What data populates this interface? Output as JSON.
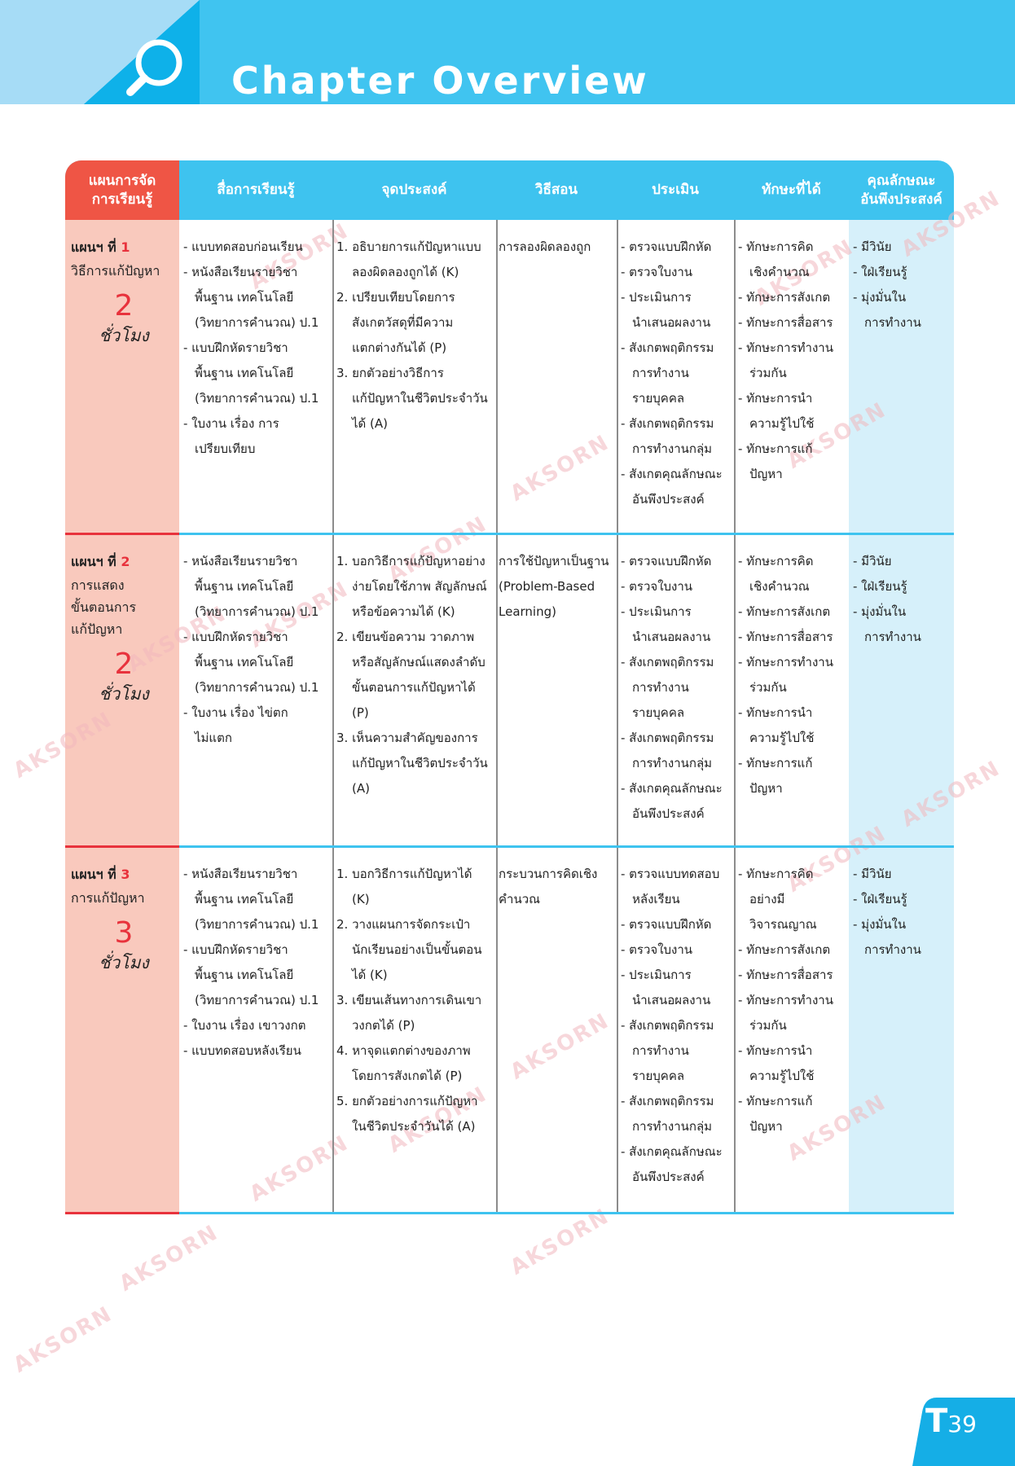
{
  "header": {
    "title": "Chapter Overview"
  },
  "watermark": "AKSORN",
  "table": {
    "headers": [
      [
        "แผนการจัด",
        "การเรียนรู้"
      ],
      [
        "สื่อการเรียนรู้"
      ],
      [
        "จุดประสงค์"
      ],
      [
        "วิธีสอน"
      ],
      [
        "ประเมิน"
      ],
      [
        "ทักษะที่ได้"
      ],
      [
        "คุณลักษณะ",
        "อันพึงประสงค์"
      ]
    ],
    "rows": [
      {
        "plan": {
          "label": "แผนฯ ที่",
          "number": "1",
          "name": [
            "วิธีการแก้ปัญหา"
          ],
          "hours": "2",
          "unit": "ชั่วโมง"
        },
        "media": [
          [
            "- แบบทดสอบก่อนเรียน"
          ],
          [
            "- หนังสือเรียนรายวิชา",
            "พื้นฐาน เทคโนโลยี",
            "(วิทยาการคำนวณ) ป.1"
          ],
          [
            "- แบบฝึกหัดรายวิชา",
            "พื้นฐาน เทคโนโลยี",
            "(วิทยาการคำนวณ) ป.1"
          ],
          [
            "- ใบงาน เรื่อง การ",
            "เปรียบเทียบ"
          ]
        ],
        "objectives": [
          [
            "1. อธิบายการแก้ปัญหาแบบ",
            "ลองผิดลองถูกได้ (K)"
          ],
          [
            "2. เปรียบเทียบโดยการ",
            "สังเกตวัสดุที่มีความ",
            "แตกต่างกันได้ (P)"
          ],
          [
            "3. ยกตัวอย่างวิธีการ",
            "แก้ปัญหาในชีวิตประจำวัน",
            "ได้ (A)"
          ]
        ],
        "method": [
          [
            "การลองผิดลองถูก"
          ]
        ],
        "assessment": [
          [
            "- ตรวจแบบฝึกหัด"
          ],
          [
            "- ตรวจใบงาน"
          ],
          [
            "- ประเมินการ",
            "นำเสนอผลงาน"
          ],
          [
            "- สังเกตพฤติกรรม",
            "การทำงาน",
            "รายบุคคล"
          ],
          [
            "- สังเกตพฤติกรรม",
            "การทำงานกลุ่ม"
          ],
          [
            "- สังเกตคุณลักษณะ",
            "อันพึงประสงค์"
          ]
        ],
        "skills": [
          [
            "- ทักษะการคิด",
            "เชิงคำนวณ"
          ],
          [
            "- ทักษะการสังเกต"
          ],
          [
            "- ทักษะการสื่อสาร"
          ],
          [
            "- ทักษะการทำงาน",
            "ร่วมกัน"
          ],
          [
            "- ทักษะการนำ",
            "ความรู้ไปใช้"
          ],
          [
            "- ทักษะการแก้",
            "ปัญหา"
          ]
        ],
        "attributes": [
          [
            "- มีวินัย"
          ],
          [
            "- ใฝ่เรียนรู้"
          ],
          [
            "- มุ่งมั่นใน",
            "การทำงาน"
          ]
        ]
      },
      {
        "plan": {
          "label": "แผนฯ ที่",
          "number": "2",
          "name": [
            "การแสดง",
            "ขั้นตอนการ",
            "แก้ปัญหา"
          ],
          "hours": "2",
          "unit": "ชั่วโมง"
        },
        "media": [
          [
            "- หนังสือเรียนรายวิชา",
            "พื้นฐาน เทคโนโลยี",
            "(วิทยาการคำนวณ) ป.1"
          ],
          [
            "- แบบฝึกหัดรายวิชา",
            "พื้นฐาน เทคโนโลยี",
            "(วิทยาการคำนวณ) ป.1"
          ],
          [
            "- ใบงาน เรื่อง ไข่ตก",
            "ไม่แตก"
          ]
        ],
        "objectives": [
          [
            "1. บอกวิธีการแก้ปัญหาอย่าง",
            "ง่ายโดยใช้ภาพ สัญลักษณ์",
            "หรือข้อความได้ (K)"
          ],
          [
            "2. เขียนข้อความ วาดภาพ",
            "หรือสัญลักษณ์แสดงลำดับ",
            "ขั้นตอนการแก้ปัญหาได้",
            "(P)"
          ],
          [
            "3. เห็นความสำคัญของการ",
            "แก้ปัญหาในชีวิตประจำวัน",
            "(A)"
          ]
        ],
        "method": [
          [
            "การใช้ปัญหาเป็นฐาน"
          ],
          [
            "(Problem-Based"
          ],
          [
            "Learning)"
          ]
        ],
        "assessment": [
          [
            "- ตรวจแบบฝึกหัด"
          ],
          [
            "- ตรวจใบงาน"
          ],
          [
            "- ประเมินการ",
            "นำเสนอผลงาน"
          ],
          [
            "- สังเกตพฤติกรรม",
            "การทำงาน",
            "รายบุคคล"
          ],
          [
            "- สังเกตพฤติกรรม",
            "การทำงานกลุ่ม"
          ],
          [
            "- สังเกตคุณลักษณะ",
            "อันพึงประสงค์"
          ]
        ],
        "skills": [
          [
            "- ทักษะการคิด",
            "เชิงคำนวณ"
          ],
          [
            "- ทักษะการสังเกต"
          ],
          [
            "- ทักษะการสื่อสาร"
          ],
          [
            "- ทักษะการทำงาน",
            "ร่วมกัน"
          ],
          [
            "- ทักษะการนำ",
            "ความรู้ไปใช้"
          ],
          [
            "- ทักษะการแก้",
            "ปัญหา"
          ]
        ],
        "attributes": [
          [
            "- มีวินัย"
          ],
          [
            "- ใฝ่เรียนรู้"
          ],
          [
            "- มุ่งมั่นใน",
            "การทำงาน"
          ]
        ]
      },
      {
        "plan": {
          "label": "แผนฯ ที่",
          "number": "3",
          "name": [
            "การแก้ปัญหา"
          ],
          "hours": "3",
          "unit": "ชั่วโมง"
        },
        "media": [
          [
            "- หนังสือเรียนรายวิชา",
            "พื้นฐาน เทคโนโลยี",
            "(วิทยาการคำนวณ) ป.1"
          ],
          [
            "- แบบฝึกหัดรายวิชา",
            "พื้นฐาน เทคโนโลยี",
            "(วิทยาการคำนวณ) ป.1"
          ],
          [
            "- ใบงาน เรื่อง เขาวงกต"
          ],
          [
            "- แบบทดสอบหลังเรียน"
          ]
        ],
        "objectives": [
          [
            "1. บอกวิธีการแก้ปัญหาได้",
            "(K)"
          ],
          [
            "2. วางแผนการจัดกระเป๋า",
            "นักเรียนอย่างเป็นขั้นตอน",
            "ได้ (K)"
          ],
          [
            "3. เขียนเส้นทางการเดินเขา",
            "วงกตได้ (P)"
          ],
          [
            "4. หาจุดแตกต่างของภาพ",
            "โดยการสังเกตได้ (P)"
          ],
          [
            "5. ยกตัวอย่างการแก้ปัญหา",
            "ในชีวิตประจำวันได้ (A)"
          ]
        ],
        "method": [
          [
            "กระบวนการคิดเชิง"
          ],
          [
            "คำนวณ"
          ]
        ],
        "assessment": [
          [
            "- ตรวจแบบทดสอบ",
            "หลังเรียน"
          ],
          [
            "- ตรวจแบบฝึกหัด"
          ],
          [
            "- ตรวจใบงาน"
          ],
          [
            "- ประเมินการ",
            "นำเสนอผลงาน"
          ],
          [
            "- สังเกตพฤติกรรม",
            "การทำงาน",
            "รายบุคคล"
          ],
          [
            "- สังเกตพฤติกรรม",
            "การทำงานกลุ่ม"
          ],
          [
            "- สังเกตคุณลักษณะ",
            "อันพึงประสงค์"
          ]
        ],
        "skills": [
          [
            "- ทักษะการคิด",
            "อย่างมี",
            "วิจารณญาณ"
          ],
          [
            "- ทักษะการสังเกต"
          ],
          [
            "- ทักษะการสื่อสาร"
          ],
          [
            "- ทักษะการทำงาน",
            "ร่วมกัน"
          ],
          [
            "- ทักษะการนำ",
            "ความรู้ไปใช้"
          ],
          [
            "- ทักษะการแก้",
            "ปัญหา"
          ]
        ],
        "attributes": [
          [
            "- มีวินัย"
          ],
          [
            "- ใฝ่เรียนรู้"
          ],
          [
            "- มุ่งมั่นใน",
            "การทำงาน"
          ]
        ]
      }
    ]
  },
  "page_number": {
    "prefix": "T",
    "number": "39"
  }
}
